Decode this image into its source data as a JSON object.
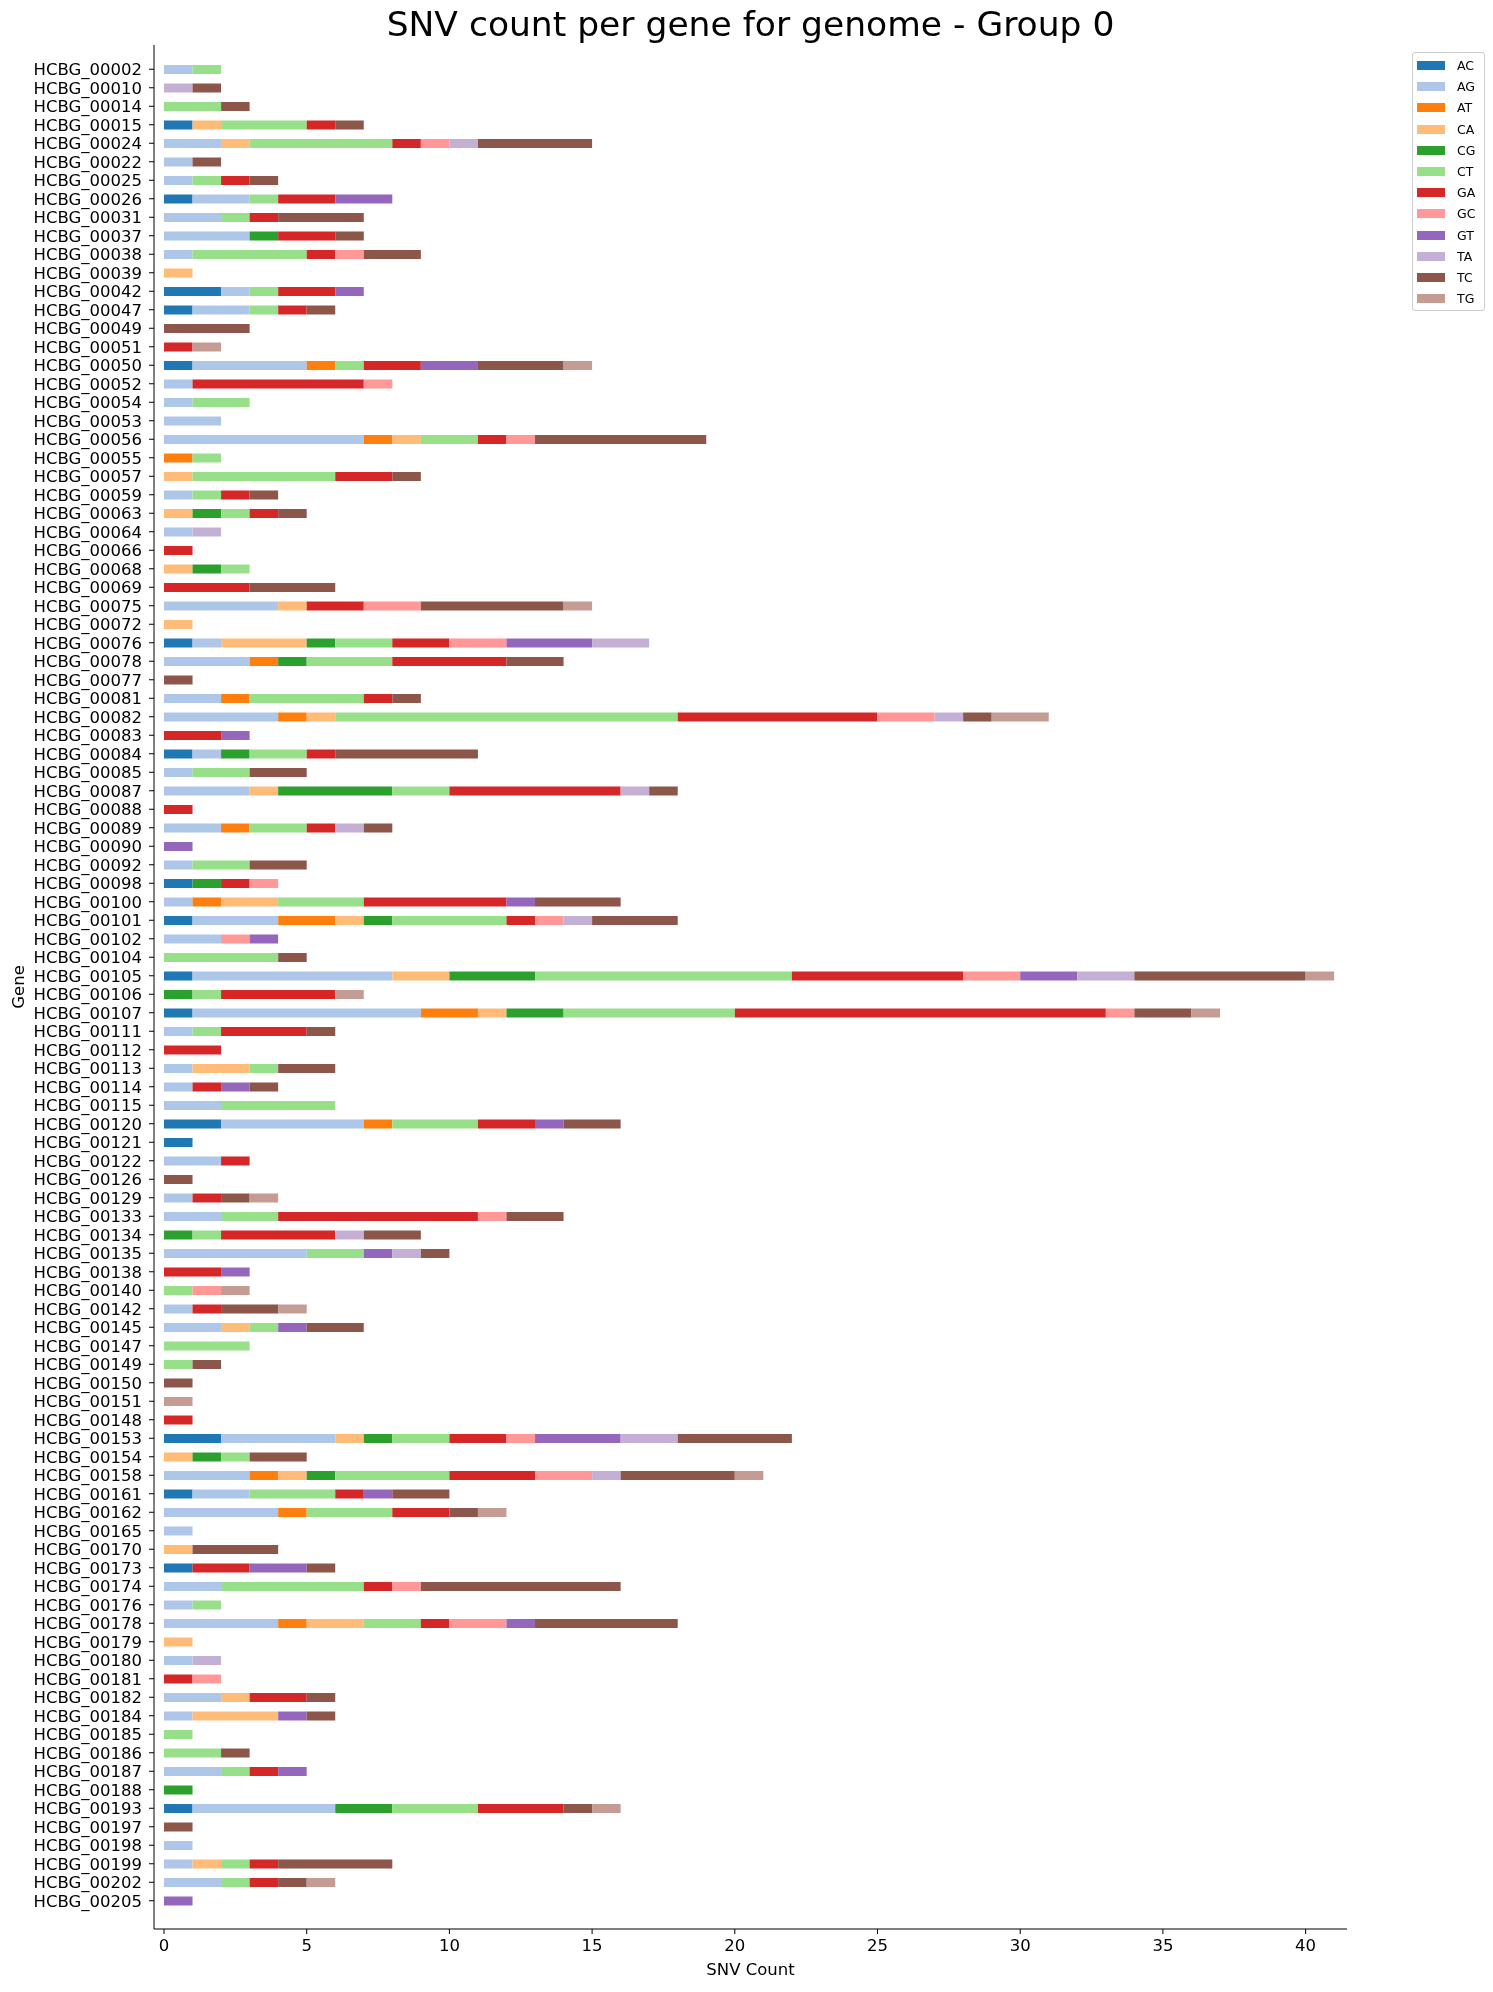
{
  "chart_data": {
    "type": "bar",
    "title": "SNV count per gene for genome - Group 0",
    "xlabel": "SNV Count",
    "ylabel": "Gene",
    "orientation": "horizontal",
    "stacked": true,
    "legend": "top right",
    "xlim": [
      -0.35,
      41.45
    ],
    "xticks": [
      0,
      5,
      10,
      15,
      20,
      25,
      30,
      35,
      40
    ],
    "categories": [
      "HCBG_00002",
      "HCBG_00010",
      "HCBG_00014",
      "HCBG_00015",
      "HCBG_00024",
      "HCBG_00022",
      "HCBG_00025",
      "HCBG_00026",
      "HCBG_00031",
      "HCBG_00037",
      "HCBG_00038",
      "HCBG_00039",
      "HCBG_00042",
      "HCBG_00047",
      "HCBG_00049",
      "HCBG_00051",
      "HCBG_00050",
      "HCBG_00052",
      "HCBG_00054",
      "HCBG_00053",
      "HCBG_00056",
      "HCBG_00055",
      "HCBG_00057",
      "HCBG_00059",
      "HCBG_00063",
      "HCBG_00064",
      "HCBG_00066",
      "HCBG_00068",
      "HCBG_00069",
      "HCBG_00075",
      "HCBG_00072",
      "HCBG_00076",
      "HCBG_00078",
      "HCBG_00077",
      "HCBG_00081",
      "HCBG_00082",
      "HCBG_00083",
      "HCBG_00084",
      "HCBG_00085",
      "HCBG_00087",
      "HCBG_00088",
      "HCBG_00089",
      "HCBG_00090",
      "HCBG_00092",
      "HCBG_00098",
      "HCBG_00100",
      "HCBG_00101",
      "HCBG_00102",
      "HCBG_00104",
      "HCBG_00105",
      "HCBG_00106",
      "HCBG_00107",
      "HCBG_00111",
      "HCBG_00112",
      "HCBG_00113",
      "HCBG_00114",
      "HCBG_00115",
      "HCBG_00120",
      "HCBG_00121",
      "HCBG_00122",
      "HCBG_00126",
      "HCBG_00129",
      "HCBG_00133",
      "HCBG_00134",
      "HCBG_00135",
      "HCBG_00138",
      "HCBG_00140",
      "HCBG_00142",
      "HCBG_00145",
      "HCBG_00147",
      "HCBG_00149",
      "HCBG_00150",
      "HCBG_00151",
      "HCBG_00148",
      "HCBG_00153",
      "HCBG_00154",
      "HCBG_00158",
      "HCBG_00161",
      "HCBG_00162",
      "HCBG_00165",
      "HCBG_00170",
      "HCBG_00173",
      "HCBG_00174",
      "HCBG_00176",
      "HCBG_00178",
      "HCBG_00179",
      "HCBG_00180",
      "HCBG_00181",
      "HCBG_00182",
      "HCBG_00184",
      "HCBG_00185",
      "HCBG_00186",
      "HCBG_00187",
      "HCBG_00188",
      "HCBG_00193",
      "HCBG_00197",
      "HCBG_00198",
      "HCBG_00199",
      "HCBG_00202",
      "HCBG_00205"
    ],
    "series": [
      {
        "name": "AC",
        "color": "#1f77b4",
        "values": [
          null,
          null,
          null,
          1,
          null,
          null,
          null,
          1,
          null,
          null,
          null,
          null,
          2,
          1,
          null,
          null,
          1,
          null,
          null,
          null,
          null,
          null,
          null,
          null,
          null,
          null,
          null,
          null,
          null,
          null,
          null,
          1,
          null,
          null,
          null,
          null,
          null,
          1,
          null,
          null,
          null,
          null,
          null,
          null,
          1,
          null,
          1,
          null,
          null,
          1,
          null,
          1,
          null,
          null,
          null,
          null,
          null,
          2,
          1,
          null,
          null,
          null,
          null,
          null,
          null,
          null,
          null,
          null,
          null,
          null,
          null,
          null,
          null,
          null,
          2,
          null,
          null,
          1,
          null,
          null,
          null,
          1,
          null,
          null,
          null,
          null,
          null,
          null,
          null,
          null,
          null,
          null,
          null,
          null,
          1,
          null,
          null,
          null,
          null,
          null
        ]
      },
      {
        "name": "AG",
        "color": "#aec7e8",
        "values": [
          1,
          null,
          null,
          null,
          2,
          1,
          1,
          2,
          2,
          3,
          1,
          null,
          1,
          2,
          null,
          null,
          4,
          1,
          1,
          2,
          7,
          null,
          null,
          1,
          null,
          1,
          null,
          null,
          null,
          4,
          null,
          1,
          3,
          null,
          2,
          4,
          null,
          1,
          1,
          3,
          null,
          2,
          null,
          1,
          null,
          1,
          3,
          2,
          null,
          7,
          null,
          8,
          1,
          null,
          1,
          1,
          2,
          5,
          null,
          2,
          null,
          1,
          2,
          null,
          5,
          null,
          null,
          1,
          2,
          null,
          null,
          null,
          null,
          null,
          4,
          null,
          3,
          2,
          4,
          1,
          null,
          null,
          2,
          1,
          4,
          null,
          1,
          null,
          2,
          1,
          null,
          null,
          2,
          null,
          5,
          null,
          1,
          1,
          2,
          null
        ]
      },
      {
        "name": "AT",
        "color": "#ff7f0e",
        "values": [
          null,
          null,
          null,
          null,
          null,
          null,
          null,
          null,
          null,
          null,
          null,
          null,
          null,
          null,
          null,
          null,
          1,
          null,
          null,
          null,
          1,
          1,
          null,
          null,
          null,
          null,
          null,
          null,
          null,
          null,
          null,
          null,
          1,
          null,
          1,
          1,
          null,
          null,
          null,
          null,
          null,
          1,
          null,
          null,
          null,
          1,
          2,
          null,
          null,
          null,
          null,
          2,
          null,
          null,
          null,
          null,
          null,
          1,
          null,
          null,
          null,
          null,
          null,
          null,
          null,
          null,
          null,
          null,
          null,
          null,
          null,
          null,
          null,
          null,
          null,
          null,
          1,
          null,
          1,
          null,
          null,
          null,
          null,
          null,
          1,
          null,
          null,
          null,
          null,
          null,
          null,
          null,
          null,
          null,
          null,
          null,
          null,
          null,
          null,
          null
        ]
      },
      {
        "name": "CA",
        "color": "#ffbb78",
        "values": [
          null,
          null,
          null,
          1,
          1,
          null,
          null,
          null,
          null,
          null,
          null,
          1,
          null,
          null,
          null,
          null,
          null,
          null,
          null,
          null,
          1,
          null,
          1,
          null,
          1,
          null,
          null,
          1,
          null,
          1,
          1,
          3,
          null,
          null,
          null,
          1,
          null,
          null,
          null,
          1,
          null,
          null,
          null,
          null,
          null,
          2,
          1,
          null,
          null,
          2,
          null,
          1,
          null,
          null,
          2,
          null,
          null,
          null,
          null,
          null,
          null,
          null,
          null,
          null,
          null,
          null,
          null,
          null,
          1,
          null,
          null,
          null,
          null,
          null,
          1,
          1,
          1,
          null,
          null,
          null,
          1,
          null,
          null,
          null,
          2,
          1,
          null,
          null,
          1,
          3,
          null,
          null,
          null,
          null,
          null,
          null,
          null,
          1,
          null,
          null
        ]
      },
      {
        "name": "CG",
        "color": "#2ca02c",
        "values": [
          null,
          null,
          null,
          null,
          null,
          null,
          null,
          null,
          null,
          1,
          null,
          null,
          null,
          null,
          null,
          null,
          null,
          null,
          null,
          null,
          null,
          null,
          null,
          null,
          1,
          null,
          null,
          1,
          null,
          null,
          null,
          1,
          1,
          null,
          null,
          null,
          null,
          1,
          null,
          4,
          null,
          null,
          null,
          null,
          1,
          null,
          1,
          null,
          null,
          3,
          1,
          2,
          null,
          null,
          null,
          null,
          null,
          null,
          null,
          null,
          null,
          null,
          null,
          1,
          null,
          null,
          null,
          null,
          null,
          null,
          null,
          null,
          null,
          null,
          1,
          1,
          1,
          null,
          null,
          null,
          null,
          null,
          null,
          null,
          null,
          null,
          null,
          null,
          null,
          null,
          null,
          null,
          null,
          1,
          2,
          null,
          null,
          null,
          null,
          null
        ]
      },
      {
        "name": "CT",
        "color": "#98df8a",
        "values": [
          1,
          null,
          2,
          3,
          5,
          null,
          1,
          1,
          1,
          null,
          4,
          null,
          1,
          1,
          null,
          null,
          1,
          null,
          2,
          null,
          2,
          1,
          5,
          1,
          1,
          null,
          null,
          1,
          null,
          null,
          null,
          2,
          3,
          null,
          4,
          12,
          null,
          2,
          2,
          2,
          null,
          2,
          null,
          2,
          null,
          3,
          4,
          null,
          4,
          9,
          1,
          6,
          1,
          null,
          1,
          null,
          4,
          3,
          null,
          null,
          null,
          null,
          2,
          1,
          2,
          null,
          1,
          null,
          1,
          3,
          1,
          null,
          null,
          null,
          2,
          1,
          4,
          3,
          3,
          null,
          null,
          null,
          5,
          1,
          2,
          null,
          null,
          null,
          null,
          null,
          1,
          2,
          1,
          null,
          3,
          null,
          null,
          1,
          1,
          null
        ]
      },
      {
        "name": "GA",
        "color": "#d62728",
        "values": [
          null,
          null,
          null,
          1,
          1,
          null,
          1,
          2,
          1,
          2,
          1,
          null,
          2,
          1,
          null,
          1,
          2,
          6,
          null,
          null,
          1,
          null,
          2,
          1,
          1,
          null,
          1,
          null,
          3,
          2,
          null,
          2,
          4,
          null,
          1,
          7,
          2,
          1,
          null,
          6,
          1,
          1,
          null,
          null,
          1,
          5,
          1,
          null,
          null,
          6,
          4,
          13,
          3,
          2,
          null,
          1,
          null,
          2,
          null,
          1,
          null,
          1,
          7,
          4,
          null,
          2,
          null,
          1,
          null,
          null,
          null,
          null,
          null,
          1,
          2,
          null,
          3,
          1,
          2,
          null,
          null,
          2,
          1,
          null,
          1,
          null,
          null,
          1,
          2,
          null,
          null,
          null,
          1,
          null,
          3,
          null,
          null,
          1,
          1,
          null
        ]
      },
      {
        "name": "GC",
        "color": "#ff9896",
        "values": [
          null,
          null,
          null,
          null,
          1,
          null,
          null,
          null,
          null,
          null,
          1,
          null,
          null,
          null,
          null,
          null,
          null,
          1,
          null,
          null,
          1,
          null,
          null,
          null,
          null,
          null,
          null,
          null,
          null,
          2,
          null,
          2,
          null,
          null,
          null,
          2,
          null,
          null,
          null,
          null,
          null,
          null,
          null,
          null,
          1,
          null,
          1,
          1,
          null,
          2,
          null,
          1,
          null,
          null,
          null,
          null,
          null,
          null,
          null,
          null,
          null,
          null,
          1,
          null,
          null,
          null,
          1,
          null,
          null,
          null,
          null,
          null,
          null,
          null,
          1,
          null,
          2,
          null,
          null,
          null,
          null,
          null,
          1,
          null,
          2,
          null,
          null,
          1,
          null,
          null,
          null,
          null,
          null,
          null,
          null,
          null,
          null,
          null,
          null,
          null
        ]
      },
      {
        "name": "GT",
        "color": "#9467bd",
        "values": [
          null,
          null,
          null,
          null,
          null,
          null,
          null,
          2,
          null,
          null,
          null,
          null,
          1,
          null,
          null,
          null,
          2,
          null,
          null,
          null,
          null,
          null,
          null,
          null,
          null,
          null,
          null,
          null,
          null,
          null,
          null,
          3,
          null,
          null,
          null,
          null,
          1,
          null,
          null,
          null,
          null,
          null,
          1,
          null,
          null,
          1,
          null,
          1,
          null,
          2,
          null,
          null,
          null,
          null,
          null,
          1,
          null,
          1,
          null,
          null,
          null,
          null,
          null,
          null,
          1,
          1,
          null,
          null,
          1,
          null,
          null,
          null,
          null,
          null,
          3,
          null,
          null,
          1,
          null,
          null,
          null,
          2,
          null,
          null,
          1,
          null,
          null,
          null,
          null,
          1,
          null,
          null,
          1,
          null,
          null,
          null,
          null,
          null,
          null,
          1
        ]
      },
      {
        "name": "TA",
        "color": "#c5b0d5",
        "values": [
          null,
          1,
          null,
          null,
          1,
          null,
          null,
          null,
          null,
          null,
          null,
          null,
          null,
          null,
          null,
          null,
          null,
          null,
          null,
          null,
          null,
          null,
          null,
          null,
          null,
          1,
          null,
          null,
          null,
          null,
          null,
          2,
          null,
          null,
          null,
          1,
          null,
          null,
          null,
          1,
          null,
          1,
          null,
          null,
          null,
          null,
          1,
          null,
          null,
          2,
          null,
          null,
          null,
          null,
          null,
          null,
          null,
          null,
          null,
          null,
          null,
          null,
          null,
          1,
          1,
          null,
          null,
          null,
          null,
          null,
          null,
          null,
          null,
          null,
          2,
          null,
          1,
          null,
          null,
          null,
          null,
          null,
          null,
          null,
          null,
          null,
          1,
          null,
          null,
          null,
          null,
          null,
          null,
          null,
          null,
          null,
          null,
          null,
          null,
          null
        ]
      },
      {
        "name": "TC",
        "color": "#8c564b",
        "values": [
          null,
          1,
          1,
          1,
          4,
          1,
          1,
          null,
          3,
          1,
          2,
          null,
          null,
          1,
          3,
          null,
          3,
          null,
          null,
          null,
          6,
          null,
          1,
          1,
          1,
          null,
          null,
          null,
          3,
          5,
          null,
          null,
          2,
          1,
          1,
          1,
          null,
          5,
          2,
          1,
          null,
          1,
          null,
          2,
          null,
          3,
          3,
          null,
          1,
          6,
          null,
          2,
          1,
          null,
          2,
          1,
          null,
          2,
          null,
          null,
          1,
          1,
          2,
          2,
          1,
          null,
          null,
          2,
          2,
          null,
          1,
          1,
          null,
          null,
          4,
          2,
          4,
          2,
          1,
          null,
          3,
          1,
          7,
          null,
          5,
          null,
          null,
          null,
          1,
          1,
          null,
          1,
          null,
          null,
          1,
          1,
          null,
          4,
          1,
          null
        ]
      },
      {
        "name": "TG",
        "color": "#c49c94",
        "values": [
          null,
          null,
          null,
          null,
          null,
          null,
          null,
          null,
          null,
          null,
          null,
          null,
          null,
          null,
          null,
          1,
          1,
          null,
          null,
          null,
          null,
          null,
          null,
          null,
          null,
          null,
          null,
          null,
          null,
          1,
          null,
          null,
          null,
          null,
          null,
          2,
          null,
          null,
          null,
          null,
          null,
          null,
          null,
          null,
          null,
          null,
          null,
          null,
          null,
          1,
          1,
          1,
          null,
          null,
          null,
          null,
          null,
          null,
          null,
          null,
          null,
          1,
          null,
          null,
          null,
          null,
          1,
          1,
          null,
          null,
          null,
          null,
          1,
          null,
          null,
          null,
          1,
          null,
          1,
          null,
          null,
          null,
          null,
          null,
          null,
          null,
          null,
          null,
          null,
          null,
          null,
          null,
          null,
          null,
          1,
          null,
          null,
          null,
          1,
          null
        ]
      }
    ]
  }
}
